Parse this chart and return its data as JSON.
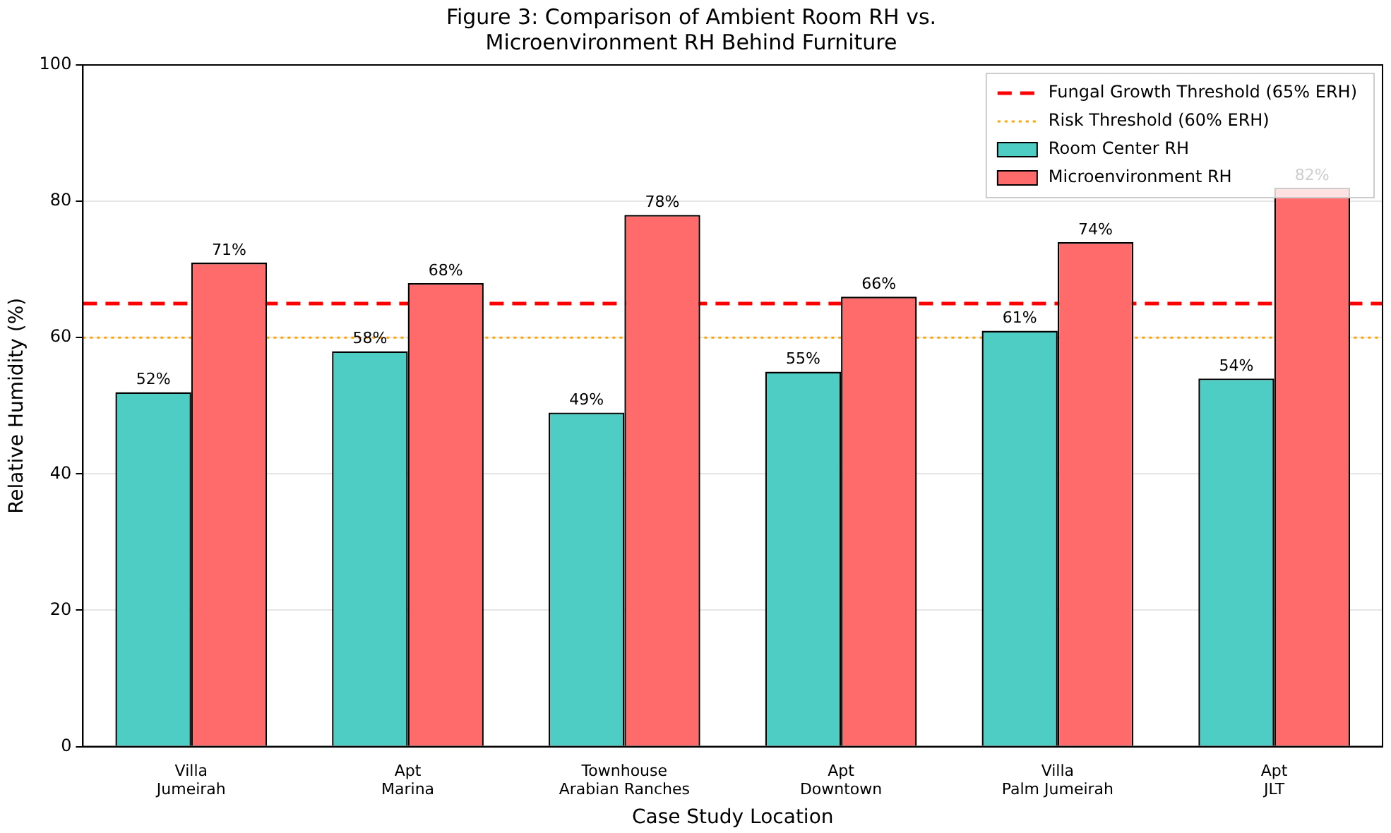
{
  "chart_data": {
    "type": "bar",
    "title": "Figure 3: Comparison of Ambient Room RH vs.\nMicroenvironment RH Behind Furniture",
    "xlabel": "Case Study Location",
    "ylabel": "Relative Humidity (%)",
    "categories": [
      "Villa\nJumeirah",
      "Apt\nMarina",
      "Townhouse\nArabian Ranches",
      "Apt\nDowntown",
      "Villa\nPalm Jumeirah",
      "Apt\nJLT"
    ],
    "series": [
      {
        "name": "Room Center RH",
        "color": "#4ecdc4",
        "values": [
          52,
          58,
          49,
          55,
          61,
          54
        ],
        "value_labels": [
          "52%",
          "58%",
          "49%",
          "55%",
          "61%",
          "54%"
        ]
      },
      {
        "name": "Microenvironment RH",
        "color": "#ff6b6b",
        "values": [
          71,
          68,
          78,
          66,
          74,
          82
        ],
        "value_labels": [
          "71%",
          "68%",
          "78%",
          "66%",
          "74%",
          "82%"
        ]
      }
    ],
    "ref_lines": [
      {
        "axis": "y",
        "value": 65,
        "label": "Fungal Growth Threshold (65% ERH)",
        "color": "#ff0000",
        "line_style": "dashed"
      },
      {
        "axis": "y",
        "value": 60,
        "label": "Risk Threshold (60% ERH)",
        "color": "#ffa500",
        "line_style": "dotted"
      }
    ],
    "ylim": [
      0,
      100
    ],
    "yticks": [
      0,
      20,
      40,
      60,
      80,
      100
    ],
    "grid": "y",
    "legend": "top right"
  }
}
